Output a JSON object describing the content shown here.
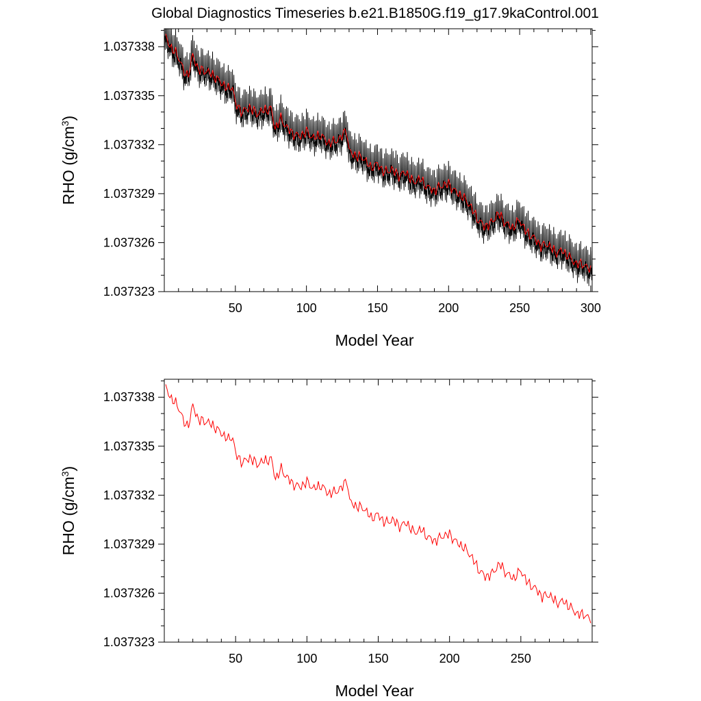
{
  "title": "Global Diagnostics Timeseries b.e21.B1850G.f19_g17.9kaControl.001",
  "colors": {
    "monthly": "#000000",
    "annual": "#ff0000",
    "frame": "#000000"
  },
  "chart_data": [
    {
      "type": "line",
      "xlabel": "Model Year",
      "ylabel": "RHO (g/cm",
      "ylabel_sup": "3",
      "ylabel_close": ")",
      "xlim": [
        0,
        301
      ],
      "ylim": [
        1.037323,
        1.0373391
      ],
      "xticks": [
        50,
        100,
        150,
        200,
        250,
        300
      ],
      "xtick_labels": [
        "50",
        "100",
        "150",
        "200",
        "250",
        "300"
      ],
      "yticks": [
        1.037323,
        1.037326,
        1.037329,
        1.037332,
        1.037335,
        1.037338
      ],
      "ytick_labels": [
        "1.037323",
        "1.037326",
        "1.037329",
        "1.037332",
        "1.037335",
        "1.037338"
      ],
      "series": [
        {
          "kind": "monthly",
          "color": "#000000",
          "amplitude": 1.2e-06
        },
        {
          "kind": "annual",
          "color": "#ff0000"
        }
      ]
    },
    {
      "type": "line",
      "xlabel": "Model Year",
      "ylabel": "RHO (g/cm",
      "ylabel_sup": "3",
      "ylabel_close": ")",
      "xlim": [
        0,
        300
      ],
      "ylim": [
        1.037323,
        1.0373391
      ],
      "xticks": [
        50,
        100,
        150,
        200,
        250
      ],
      "xtick_labels": [
        "50",
        "100",
        "150",
        "200",
        "250"
      ],
      "yticks": [
        1.037323,
        1.037326,
        1.037329,
        1.037332,
        1.037335,
        1.037338
      ],
      "ytick_labels": [
        "1.037323",
        "1.037326",
        "1.037329",
        "1.037332",
        "1.037335",
        "1.037338"
      ],
      "series": [
        {
          "kind": "annual",
          "color": "#ff0000"
        }
      ]
    }
  ],
  "annual_mean_anchors": {
    "x": [
      1,
      5,
      10,
      15,
      18,
      20,
      24,
      30,
      35,
      40,
      45,
      48,
      50,
      55,
      60,
      65,
      70,
      75,
      78,
      82,
      85,
      90,
      95,
      100,
      105,
      110,
      115,
      120,
      125,
      128,
      130,
      135,
      140,
      145,
      150,
      155,
      160,
      165,
      170,
      175,
      180,
      185,
      190,
      195,
      200,
      205,
      210,
      215,
      220,
      225,
      230,
      235,
      240,
      245,
      250,
      255,
      260,
      265,
      270,
      275,
      280,
      285,
      290,
      295,
      298
    ],
    "y": [
      1.0373386,
      1.0373379,
      1.0373374,
      1.0373362,
      1.0373366,
      1.0373375,
      1.0373366,
      1.0373365,
      1.0373362,
      1.0373358,
      1.0373354,
      1.0373356,
      1.0373345,
      1.037334,
      1.0373343,
      1.0373339,
      1.0373341,
      1.0373342,
      1.037333,
      1.0373336,
      1.0373332,
      1.0373327,
      1.0373325,
      1.0373328,
      1.0373324,
      1.0373326,
      1.0373321,
      1.0373322,
      1.0373325,
      1.037333,
      1.0373316,
      1.0373313,
      1.0373312,
      1.0373306,
      1.0373308,
      1.0373303,
      1.0373305,
      1.0373301,
      1.0373303,
      1.0373297,
      1.0373299,
      1.0373294,
      1.0373292,
      1.0373295,
      1.0373296,
      1.0373291,
      1.0373288,
      1.0373283,
      1.0373275,
      1.037327,
      1.0373272,
      1.0373278,
      1.0373272,
      1.0373269,
      1.0373274,
      1.0373266,
      1.0373263,
      1.0373258,
      1.0373259,
      1.0373254,
      1.0373255,
      1.0373251,
      1.0373247,
      1.0373247,
      1.0373244
    ]
  }
}
